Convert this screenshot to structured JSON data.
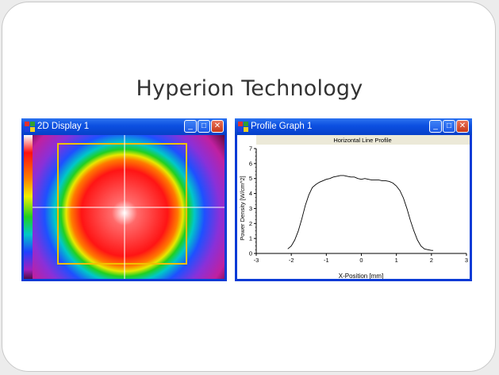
{
  "slide": {
    "title": "Hyperion Technology"
  },
  "display_window": {
    "title": "2D Display 1",
    "buttons": {
      "minimize": "_",
      "maximize": "□",
      "close": "✕"
    }
  },
  "profile_window": {
    "title": "Profile Graph 1",
    "buttons": {
      "minimize": "_",
      "maximize": "□",
      "close": "✕"
    }
  },
  "colors": {
    "window_border": "#0a3bd6",
    "profile_line": "#000000",
    "roi_box": "#f3c000",
    "crosshair": "#ffffff"
  },
  "chart_data": {
    "type": "line",
    "title": "Horizontal Line Profile",
    "xlabel": "X-Position [mm]",
    "ylabel": "Power Density [W/cm^2]",
    "xlim": [
      -3,
      3
    ],
    "ylim": [
      0,
      7
    ],
    "xticks": [
      "-3",
      "-2",
      "-1",
      "0",
      "1",
      "2",
      "3"
    ],
    "yticks": [
      "0",
      "1",
      "2",
      "3",
      "4",
      "5",
      "6",
      "7"
    ],
    "series": [
      {
        "x": [
          -2.1,
          -2.0,
          -1.9,
          -1.8,
          -1.7,
          -1.6,
          -1.5,
          -1.4,
          -1.3,
          -1.2,
          -1.1,
          -1.0,
          -0.9,
          -0.8,
          -0.7,
          -0.6,
          -0.5,
          -0.4,
          -0.3,
          -0.2,
          -0.1,
          0.0,
          0.1,
          0.2,
          0.3,
          0.4,
          0.5,
          0.6,
          0.7,
          0.8,
          0.9,
          1.0,
          1.1,
          1.2,
          1.3,
          1.4,
          1.5,
          1.6,
          1.7,
          1.8,
          1.9,
          2.0,
          2.05
        ],
        "y": [
          0.3,
          0.5,
          0.9,
          1.5,
          2.3,
          3.2,
          3.9,
          4.4,
          4.6,
          4.75,
          4.85,
          4.95,
          5.0,
          5.1,
          5.15,
          5.2,
          5.2,
          5.15,
          5.1,
          5.1,
          5.0,
          4.95,
          5.0,
          4.95,
          4.9,
          4.9,
          4.9,
          4.85,
          4.85,
          4.8,
          4.7,
          4.5,
          4.2,
          3.7,
          3.0,
          2.2,
          1.5,
          0.9,
          0.5,
          0.3,
          0.25,
          0.2,
          0.2
        ]
      }
    ]
  }
}
